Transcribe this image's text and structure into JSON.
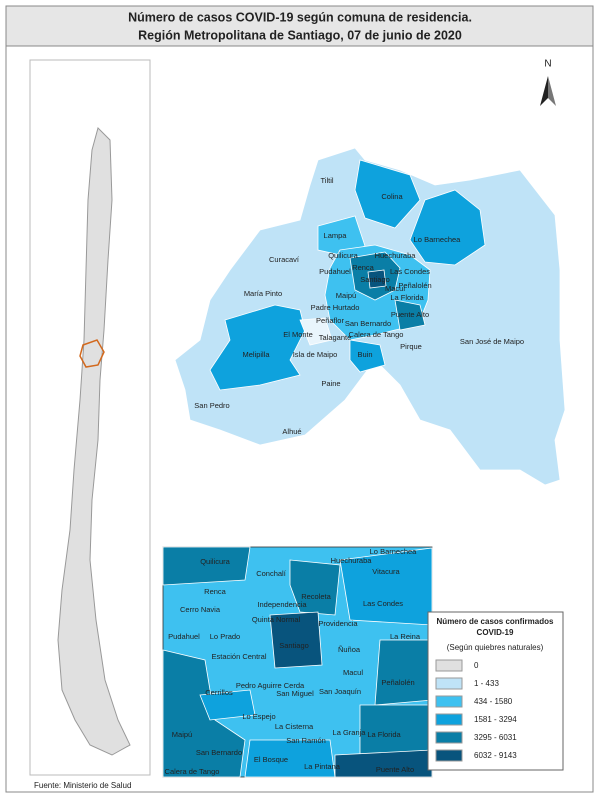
{
  "header": {
    "title": [
      "Número de casos COVID-19 según comuna de residencia.",
      "Región Metropolitana de Santiago, 07 de junio de 2020"
    ]
  },
  "north": "N",
  "map": {
    "labels": [
      "Tiltil",
      "Colina",
      "Lampa",
      "Lo Barnechea",
      "Quilicura",
      "Huechuraba",
      "Curacaví",
      "Renca",
      "Pudahuel",
      "Las Condes",
      "Santiago",
      "Macul",
      "Peñalolén",
      "María Pinto",
      "Maipú",
      "La Florida",
      "Padre Hurtado",
      "Peñaflor",
      "Puente Alto",
      "El Monte",
      "San Bernardo",
      "Talagante",
      "Calera de Tango",
      "Pirque",
      "San José de Maipo",
      "Melipilla",
      "Isla de Maipo",
      "Buin",
      "Paine",
      "San Pedro",
      "Alhué"
    ]
  },
  "inset": {
    "labels": [
      "Quilicura",
      "Huechuraba",
      "Lo Barnechea",
      "Conchalí",
      "Vitacura",
      "Recoleta",
      "Renca",
      "Las Condes",
      "Independencia",
      "Cerro Navia",
      "Quinta Normal",
      "Providencia",
      "Lo Prado",
      "Pudahuel",
      "La Reina",
      "Santiago",
      "Ñuñoa",
      "Estación Central",
      "Macul",
      "Peñalolén",
      "Pedro Aguirre Cerda",
      "Cerrillos",
      "San Miguel",
      "San Joaquín",
      "Maipú",
      "Lo Espejo",
      "La Cisterna",
      "San Ramón",
      "La Granja",
      "La Florida",
      "San Bernardo",
      "El Bosque",
      "La Pintana",
      "Calera de Tango",
      "Puente Alto"
    ]
  },
  "legend": {
    "title": [
      "Número de casos confirmados",
      "COVID-19"
    ],
    "subtitle": "(Según quiebres naturales)",
    "classes": [
      {
        "label": "0",
        "color": "#e0e0e0"
      },
      {
        "label": "1 - 433",
        "color": "#bfe3f7"
      },
      {
        "label": "434 - 1580",
        "color": "#3ec1f0"
      },
      {
        "label": "1581 - 3294",
        "color": "#0ea2dd"
      },
      {
        "label": "3295 - 6031",
        "color": "#0a7ea6"
      },
      {
        "label": "6032 - 9143",
        "color": "#08547d"
      }
    ]
  },
  "source": "Fuente: Ministerio de Salud"
}
